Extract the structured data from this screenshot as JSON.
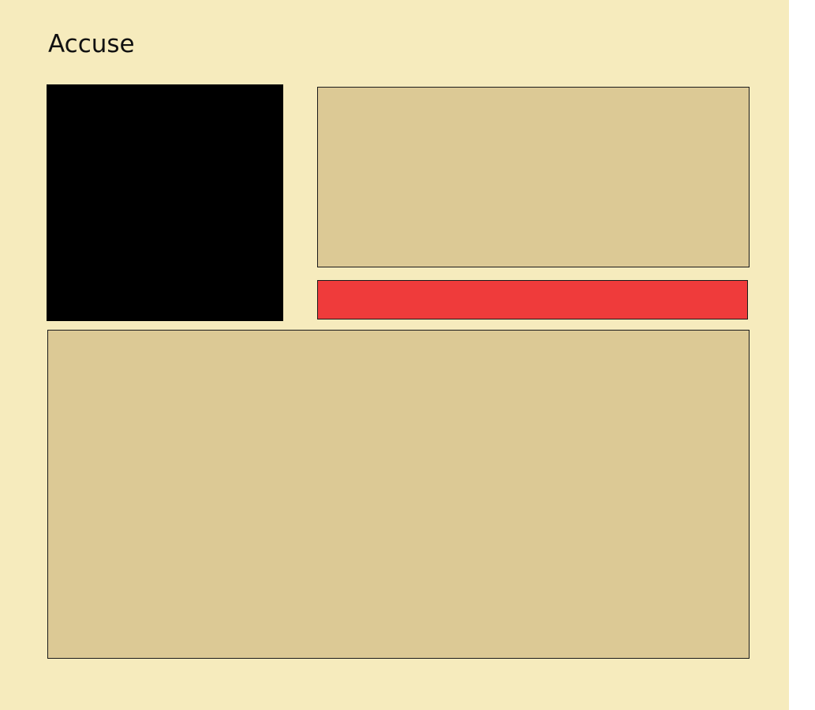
{
  "page": {
    "title": "Accuse"
  },
  "colors": {
    "background": "#f6ebbd",
    "panel": "#dcc995",
    "portrait": "#000000",
    "action": "#ef3b3b",
    "border": "#1a1a1a"
  },
  "panels": {
    "top_text": "",
    "log_text": ""
  },
  "action": {
    "label": ""
  }
}
